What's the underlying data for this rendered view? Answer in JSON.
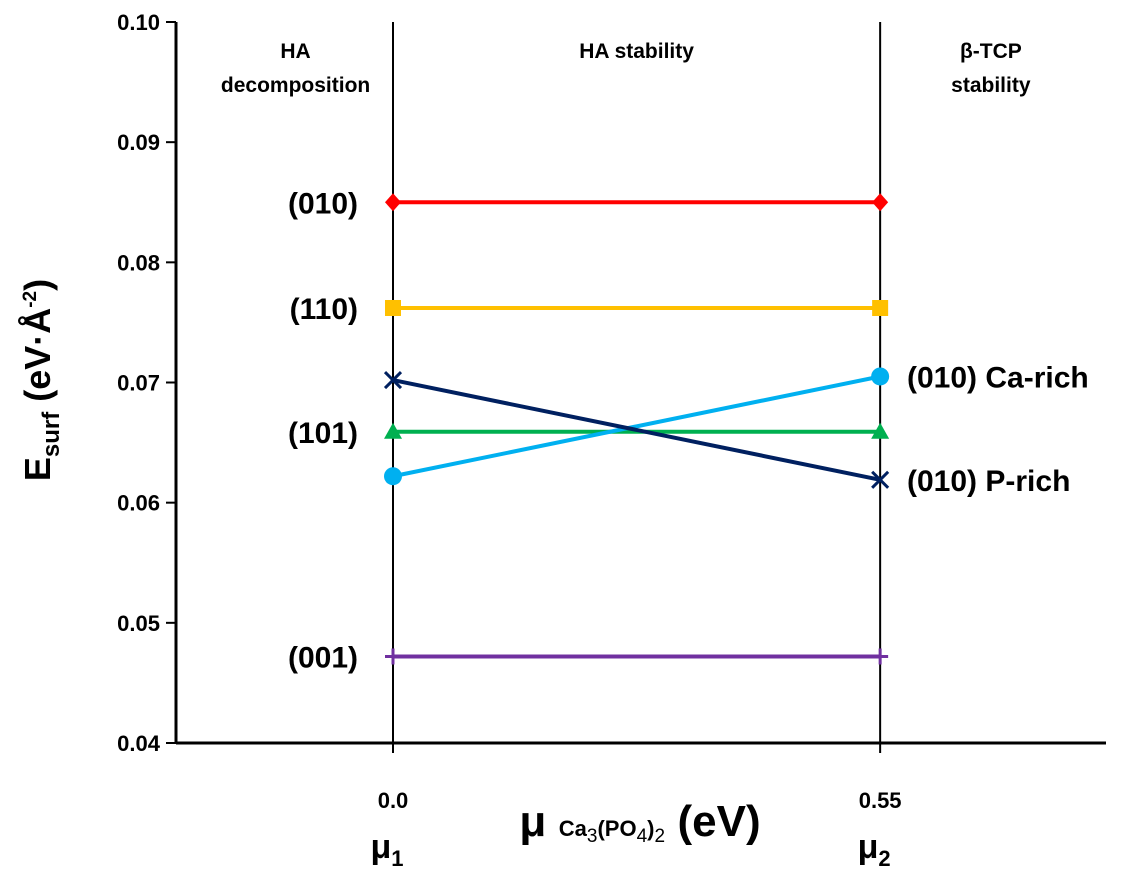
{
  "chart_data": {
    "type": "line",
    "x": [
      0.0,
      0.55
    ],
    "xlim": [
      -0.245,
      0.805
    ],
    "ylim": [
      0.04,
      0.1
    ],
    "y_ticks": [
      "0.04",
      "0.05",
      "0.06",
      "0.07",
      "0.08",
      "0.09",
      "0.10"
    ],
    "x_ticks": [
      {
        "value": 0.0,
        "label": "0.0",
        "mu": "μ",
        "mu_sub": "1"
      },
      {
        "value": 0.55,
        "label": "0.55",
        "mu": "μ",
        "mu_sub": "2"
      }
    ],
    "ylabel": {
      "main": "E",
      "sub": "surf",
      "unit_open": " (eV·Å",
      "unit_sup": "-2",
      "unit_close": ")"
    },
    "xlabel": {
      "mu": "μ",
      "formula_a": "Ca",
      "sub_a": "3",
      "formula_b": "(PO",
      "sub_b": "4",
      "formula_c": ")",
      "sub_c": "2",
      "unit": "(eV)"
    },
    "regions": [
      {
        "lines": [
          "HA",
          "decomposition"
        ],
        "x": -0.11
      },
      {
        "lines": [
          "HA stability"
        ],
        "x": 0.275
      },
      {
        "lines": [
          "β-TCP",
          "stability"
        ],
        "x": 0.675
      }
    ],
    "boundaries": [
      0.0,
      0.55
    ],
    "grid": false,
    "series": [
      {
        "name": "(010)",
        "values": [
          0.085,
          0.085
        ],
        "color": "#ff0000",
        "marker": "diamond",
        "label_side": "left"
      },
      {
        "name": "(110)",
        "values": [
          0.0762,
          0.0762
        ],
        "color": "#ffc000",
        "marker": "square",
        "label_side": "left"
      },
      {
        "name": "(101)",
        "values": [
          0.0659,
          0.0659
        ],
        "color": "#00b050",
        "marker": "triangle",
        "label_side": "left"
      },
      {
        "name": "(001)",
        "values": [
          0.0472,
          0.0472
        ],
        "color": "#7030a0",
        "marker": "plus",
        "label_side": "left"
      },
      {
        "name": "(010) Ca-rich",
        "values": [
          0.0622,
          0.0705
        ],
        "color": "#00b0f0",
        "marker": "circle",
        "label_side": "right"
      },
      {
        "name": "(010) P-rich",
        "values": [
          0.0702,
          0.0619
        ],
        "color": "#002060",
        "marker": "x",
        "label_side": "right"
      }
    ]
  }
}
